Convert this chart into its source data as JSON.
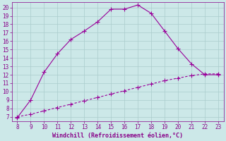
{
  "xlabel": "Windchill (Refroidissement éolien,°C)",
  "x_curve1": [
    8,
    9,
    10,
    11,
    12,
    13,
    14,
    15,
    16,
    17,
    18,
    19,
    20,
    21,
    22,
    23
  ],
  "y_curve1": [
    6.9,
    9.0,
    12.3,
    14.5,
    16.2,
    17.2,
    18.3,
    19.8,
    19.8,
    20.3,
    19.3,
    17.2,
    15.1,
    13.3,
    12.0,
    12.0
  ],
  "x_curve2": [
    8,
    9,
    10,
    11,
    12,
    13,
    14,
    15,
    16,
    17,
    18,
    19,
    20,
    21,
    22,
    23
  ],
  "y_curve2": [
    7.0,
    7.3,
    7.7,
    8.1,
    8.5,
    8.9,
    9.3,
    9.7,
    10.1,
    10.5,
    10.9,
    11.3,
    11.6,
    11.9,
    12.1,
    12.1
  ],
  "line_color": "#990099",
  "marker": "+",
  "background_color": "#cce8e8",
  "grid_color": "#aacccc",
  "xlim": [
    7.6,
    23.4
  ],
  "ylim": [
    6.5,
    20.6
  ],
  "xticks": [
    8,
    9,
    10,
    11,
    12,
    13,
    14,
    15,
    16,
    17,
    18,
    19,
    20,
    21,
    22,
    23
  ],
  "yticks": [
    7,
    8,
    9,
    10,
    11,
    12,
    13,
    14,
    15,
    16,
    17,
    18,
    19,
    20
  ],
  "tick_color": "#880088",
  "label_color": "#880088",
  "font_size_tick": 5.5,
  "font_size_label": 6.0
}
